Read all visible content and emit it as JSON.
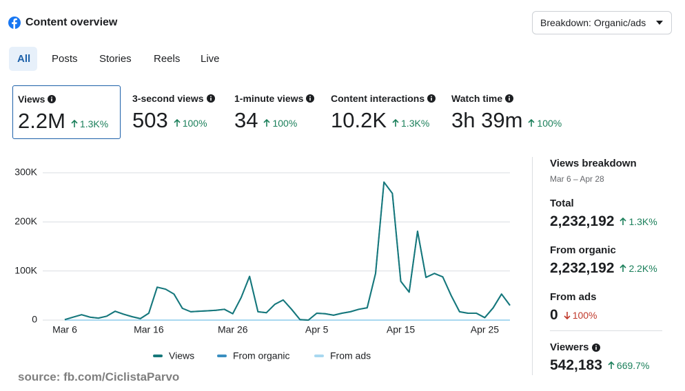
{
  "header": {
    "title": "Content overview",
    "breakdown": "Breakdown: Organic/ads"
  },
  "tabs": [
    "All",
    "Posts",
    "Stories",
    "Reels",
    "Live"
  ],
  "metrics": [
    {
      "label": "Views",
      "value": "2.2M",
      "change": "1.3K%",
      "direction": "up"
    },
    {
      "label": "3-second views",
      "value": "503",
      "change": "100%",
      "direction": "up"
    },
    {
      "label": "1-minute views",
      "value": "34",
      "change": "100%",
      "direction": "up"
    },
    {
      "label": "Content interactions",
      "value": "10.2K",
      "change": "1.3K%",
      "direction": "up"
    },
    {
      "label": "Watch time",
      "value": "3h 39m",
      "change": "100%",
      "direction": "up"
    }
  ],
  "chart_data": {
    "type": "line",
    "categories": [
      "Mar 6",
      null,
      null,
      null,
      null,
      null,
      null,
      null,
      null,
      null,
      "Mar 16",
      null,
      null,
      null,
      null,
      null,
      null,
      null,
      null,
      null,
      "Mar 26",
      null,
      null,
      null,
      null,
      null,
      null,
      null,
      null,
      null,
      "Apr 5",
      null,
      null,
      null,
      null,
      null,
      null,
      null,
      null,
      null,
      "Apr 15",
      null,
      null,
      null,
      null,
      null,
      null,
      null,
      null,
      null,
      "Apr 25",
      null,
      null,
      null
    ],
    "series": [
      {
        "name": "Views",
        "color": "#17787a",
        "values": [
          1000,
          6000,
          11000,
          6000,
          4000,
          8000,
          18000,
          12000,
          7000,
          3000,
          14000,
          67000,
          63000,
          53000,
          24000,
          17000,
          18000,
          19000,
          20000,
          22000,
          13000,
          46000,
          89000,
          17000,
          15000,
          32000,
          41000,
          22000,
          1000,
          0,
          14000,
          13000,
          10000,
          14000,
          17000,
          22000,
          25000,
          95000,
          281000,
          258000,
          79000,
          57000,
          181000,
          87000,
          95000,
          88000,
          50000,
          17000,
          14000,
          14000,
          5000,
          25000,
          53000,
          30000
        ]
      },
      {
        "name": "From organic",
        "color": "#3a8fc0",
        "values": [
          1000,
          6000,
          11000,
          6000,
          4000,
          8000,
          18000,
          12000,
          7000,
          3000,
          14000,
          67000,
          63000,
          53000,
          24000,
          17000,
          18000,
          19000,
          20000,
          22000,
          13000,
          46000,
          89000,
          17000,
          15000,
          32000,
          41000,
          22000,
          1000,
          0,
          14000,
          13000,
          10000,
          14000,
          17000,
          22000,
          25000,
          95000,
          281000,
          258000,
          79000,
          57000,
          181000,
          87000,
          95000,
          88000,
          50000,
          17000,
          14000,
          14000,
          5000,
          25000,
          53000,
          30000
        ]
      },
      {
        "name": "From ads",
        "color": "#a8d8f0",
        "values": [
          0,
          0,
          0,
          0,
          0,
          0,
          0,
          0,
          0,
          0,
          0,
          0,
          0,
          0,
          0,
          0,
          0,
          0,
          0,
          0,
          0,
          0,
          0,
          0,
          0,
          0,
          0,
          0,
          0,
          0,
          0,
          0,
          0,
          0,
          0,
          0,
          0,
          0,
          0,
          0,
          0,
          0,
          0,
          0,
          0,
          0,
          0,
          0,
          0,
          0,
          0,
          0,
          0,
          0
        ]
      }
    ],
    "ylim": [
      0,
      300000
    ],
    "yticks": [
      0,
      {
        "value": 100000,
        "label": "100K"
      },
      {
        "value": 200000,
        "label": "200K"
      },
      {
        "value": 300000,
        "label": "300K"
      }
    ],
    "grid": true
  },
  "breakdown": {
    "title": "Views breakdown",
    "range": "Mar 6 – Apr 28",
    "items": [
      {
        "label": "Total",
        "value": "2,232,192",
        "change": "1.3K%",
        "direction": "up"
      },
      {
        "label": "From organic",
        "value": "2,232,192",
        "change": "2.2K%",
        "direction": "up"
      },
      {
        "label": "From ads",
        "value": "0",
        "change": "100%",
        "direction": "down"
      },
      {
        "label": "Viewers",
        "value": "542,183",
        "change": "669.7%",
        "direction": "up"
      }
    ]
  },
  "source": "source: fb.com/CiclistaParvo"
}
